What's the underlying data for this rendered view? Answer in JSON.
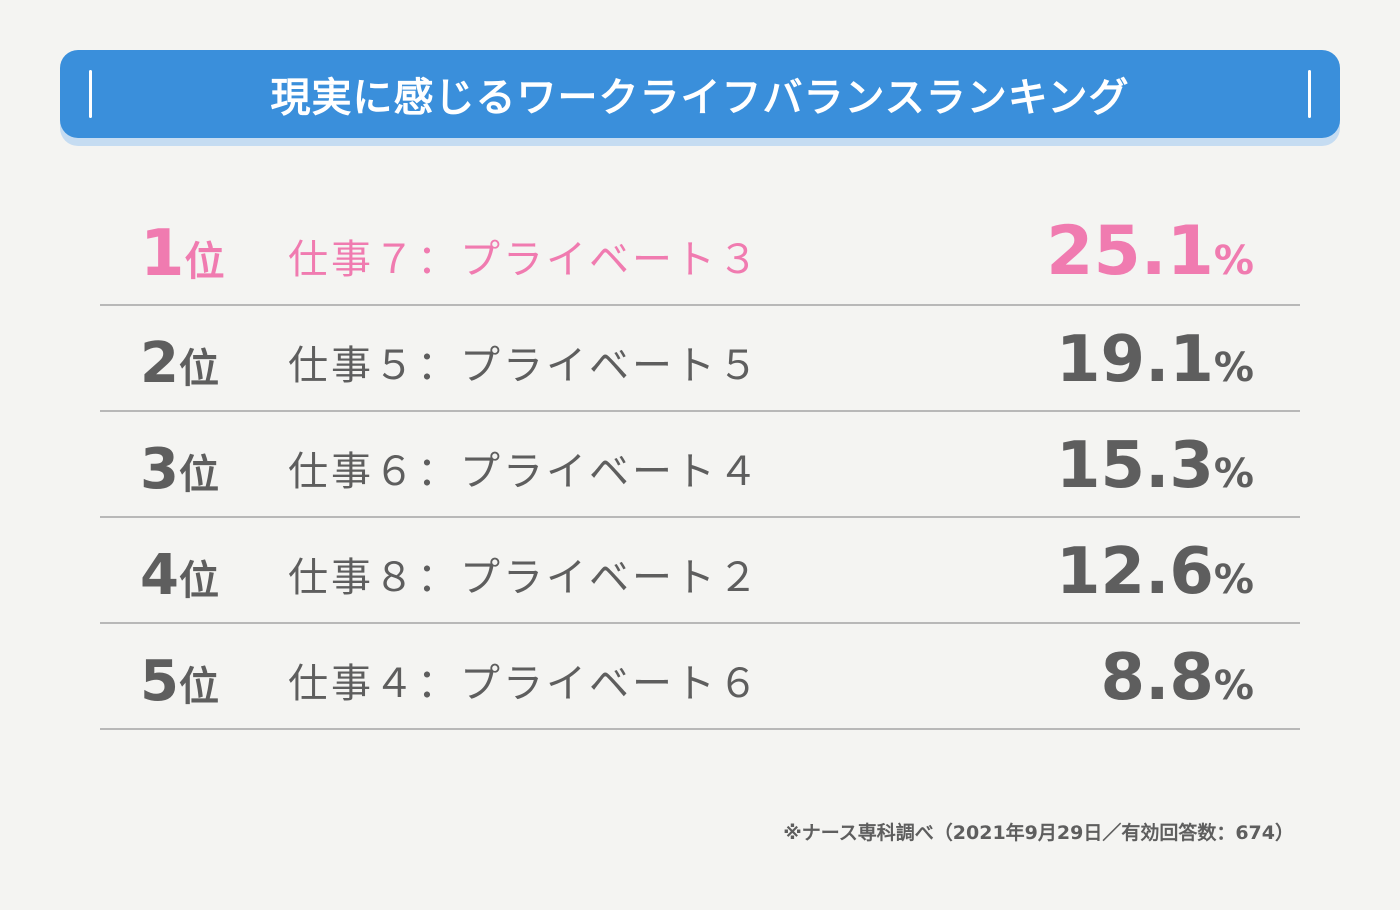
{
  "header": {
    "title": "現実に感じるワークライフバランスランキング"
  },
  "chart_data": {
    "type": "table",
    "title": "現実に感じるワークライフバランスランキング",
    "rank_unit": "位",
    "value_unit": "%",
    "rows": [
      {
        "rank": "1",
        "label": "仕事７：プライベート３",
        "value": "25.1"
      },
      {
        "rank": "2",
        "label": "仕事５：プライベート５",
        "value": "19.1"
      },
      {
        "rank": "3",
        "label": "仕事６：プライベート４",
        "value": "15.3"
      },
      {
        "rank": "4",
        "label": "仕事８：プライベート２",
        "value": "12.6"
      },
      {
        "rank": "5",
        "label": "仕事４：プライベート６",
        "value": "8.8"
      }
    ],
    "highlight_color": "#f07bb0",
    "text_color": "#5e5e5e"
  },
  "footnote": "※ナース専科調べ（2021年9月29日／有効回答数：674）",
  "colors": {
    "banner": "#3a8fdb",
    "background": "#f4f4f2"
  }
}
